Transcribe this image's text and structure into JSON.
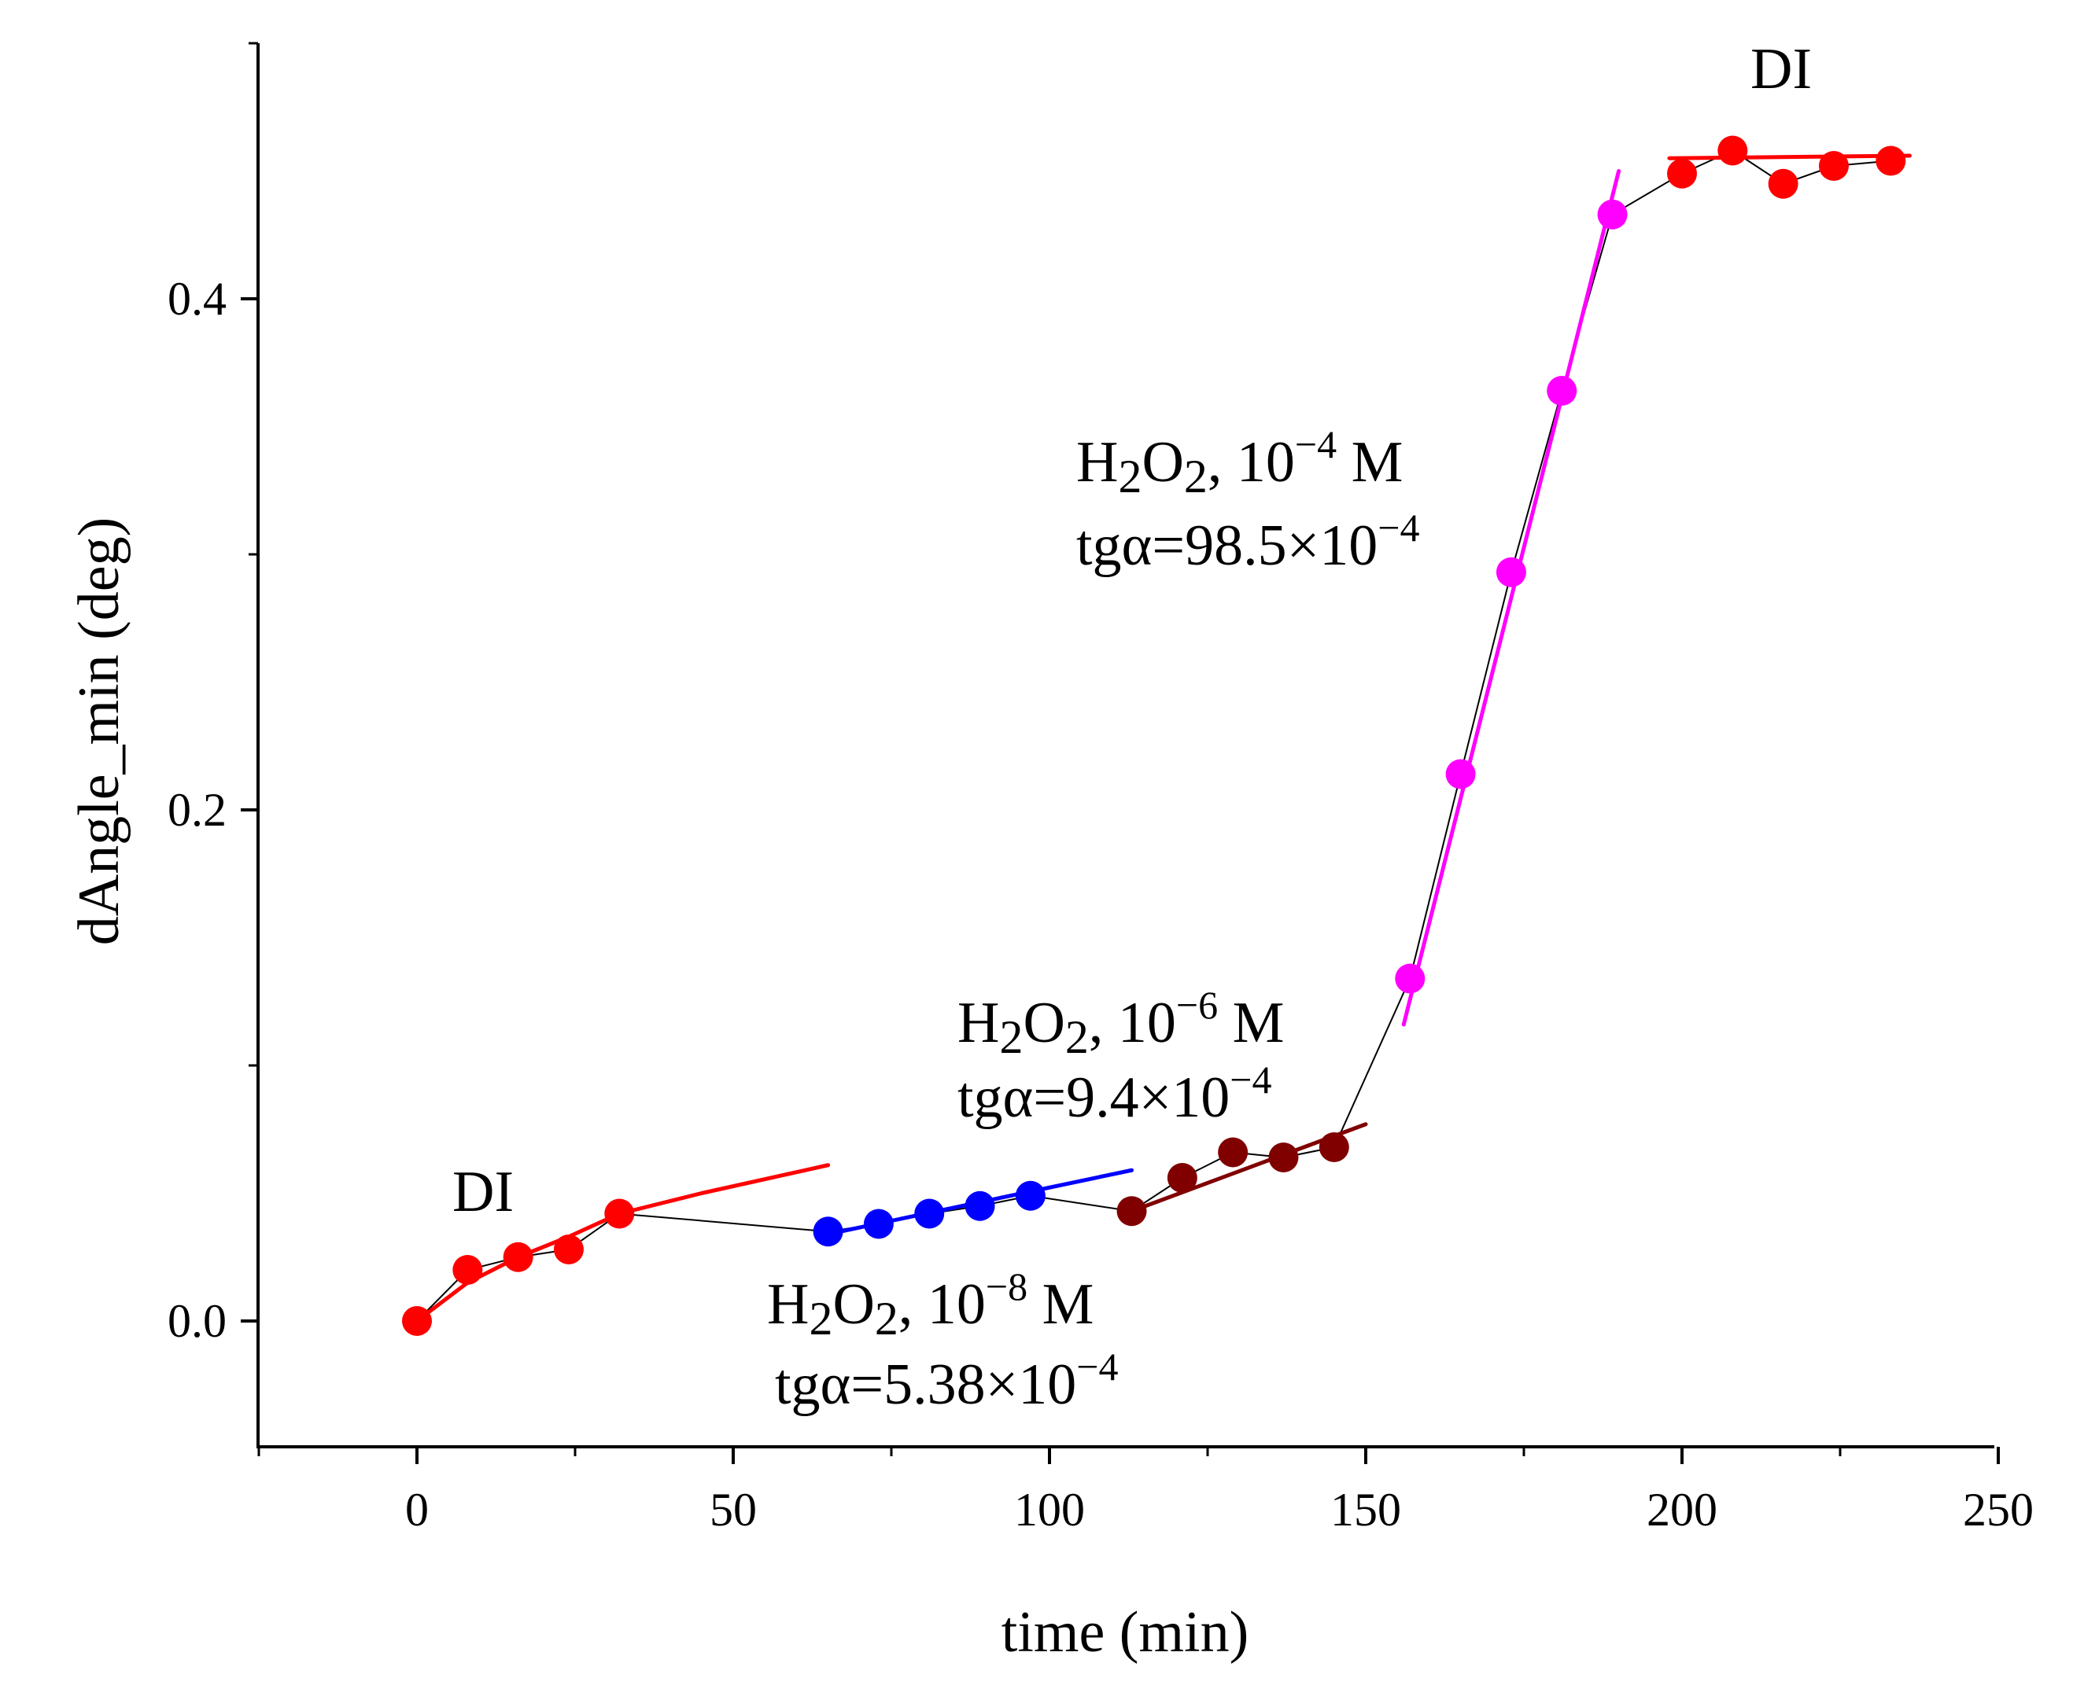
{
  "chart_data": {
    "type": "scatter",
    "xlabel": "time (min)",
    "ylabel": "dAngle_min (deg)",
    "xlim": [
      -25,
      250
    ],
    "ylim": [
      -0.05,
      0.5
    ],
    "xticks": [
      0,
      50,
      100,
      150,
      200,
      250
    ],
    "xtick_labels": [
      "0",
      "50",
      "100",
      "150",
      "200",
      "250"
    ],
    "yticks": [
      0.0,
      0.2,
      0.4
    ],
    "ytick_labels": [
      "0.0",
      "0.2",
      "0.4"
    ],
    "grid": false,
    "connector": {
      "color": "#000000",
      "x": [
        0,
        8,
        16,
        24,
        32,
        65,
        73,
        81,
        89,
        97,
        113,
        121,
        129,
        137,
        145,
        157,
        165,
        173,
        181,
        189,
        200,
        208,
        216,
        224,
        233
      ],
      "y": [
        0.0,
        0.02,
        0.025,
        0.028,
        0.042,
        0.035,
        0.038,
        0.042,
        0.045,
        0.049,
        0.043,
        0.056,
        0.066,
        0.064,
        0.068,
        0.134,
        0.214,
        0.293,
        0.364,
        0.433,
        0.449,
        0.458,
        0.445,
        0.452,
        0.454
      ]
    },
    "series": [
      {
        "name": "DI",
        "color": "#ff0000",
        "x": [
          0,
          8,
          16,
          24,
          32
        ],
        "y": [
          0.0,
          0.02,
          0.025,
          0.028,
          0.042
        ],
        "fit": {
          "kind": "curve",
          "x": [
            0,
            8,
            16,
            24,
            32,
            45,
            65
          ],
          "y": [
            0.0,
            0.015,
            0.025,
            0.033,
            0.042,
            0.05,
            0.061
          ]
        }
      },
      {
        "name": "H2O2 1e-8 M",
        "color": "#0000ff",
        "x": [
          65,
          73,
          81,
          89,
          97
        ],
        "y": [
          0.035,
          0.038,
          0.042,
          0.045,
          0.049
        ],
        "fit": {
          "kind": "line",
          "x": [
            65,
            113
          ],
          "y": [
            0.034,
            0.059
          ]
        }
      },
      {
        "name": "H2O2 1e-6 M",
        "color": "#800000",
        "x": [
          113,
          121,
          129,
          137,
          145
        ],
        "y": [
          0.043,
          0.056,
          0.066,
          0.064,
          0.068
        ],
        "fit": {
          "kind": "line",
          "x": [
            113,
            150
          ],
          "y": [
            0.043,
            0.077
          ]
        }
      },
      {
        "name": "H2O2 1e-4 M",
        "color": "#ff00ff",
        "x": [
          157,
          165,
          173,
          181,
          189
        ],
        "y": [
          0.134,
          0.214,
          0.293,
          0.364,
          0.433
        ],
        "fit": {
          "kind": "line",
          "x": [
            156,
            190
          ],
          "y": [
            0.116,
            0.45
          ]
        }
      },
      {
        "name": "DI",
        "color": "#ff0000",
        "x": [
          200,
          208,
          216,
          224,
          233
        ],
        "y": [
          0.449,
          0.458,
          0.445,
          0.452,
          0.454
        ],
        "fit": {
          "kind": "line",
          "x": [
            198,
            236
          ],
          "y": [
            0.455,
            0.456
          ]
        }
      }
    ],
    "annotations": {
      "di_start": "DI",
      "di_end": "DI",
      "h2o2_1e4": {
        "species": "H",
        "sub1": "2",
        "mid": "O",
        "sub2": "2",
        "conc": ", 10",
        "exp": "−4",
        "unit": " M",
        "slope_prefix": "tgα=98.5×10",
        "slope_exp": "−4"
      },
      "h2o2_1e6": {
        "species": "H",
        "sub1": "2",
        "mid": "O",
        "sub2": "2",
        "conc": ", 10",
        "exp": "−6",
        "unit": " M",
        "slope_prefix": "tgα=9.4×10",
        "slope_exp": "−4"
      },
      "h2o2_1e8": {
        "species": "H",
        "sub1": "2",
        "mid": "O",
        "sub2": "2",
        "conc": ", 10",
        "exp": "−8",
        "unit": " M",
        "slope_prefix": "tgα=5.38×10",
        "slope_exp": "−4"
      }
    }
  }
}
